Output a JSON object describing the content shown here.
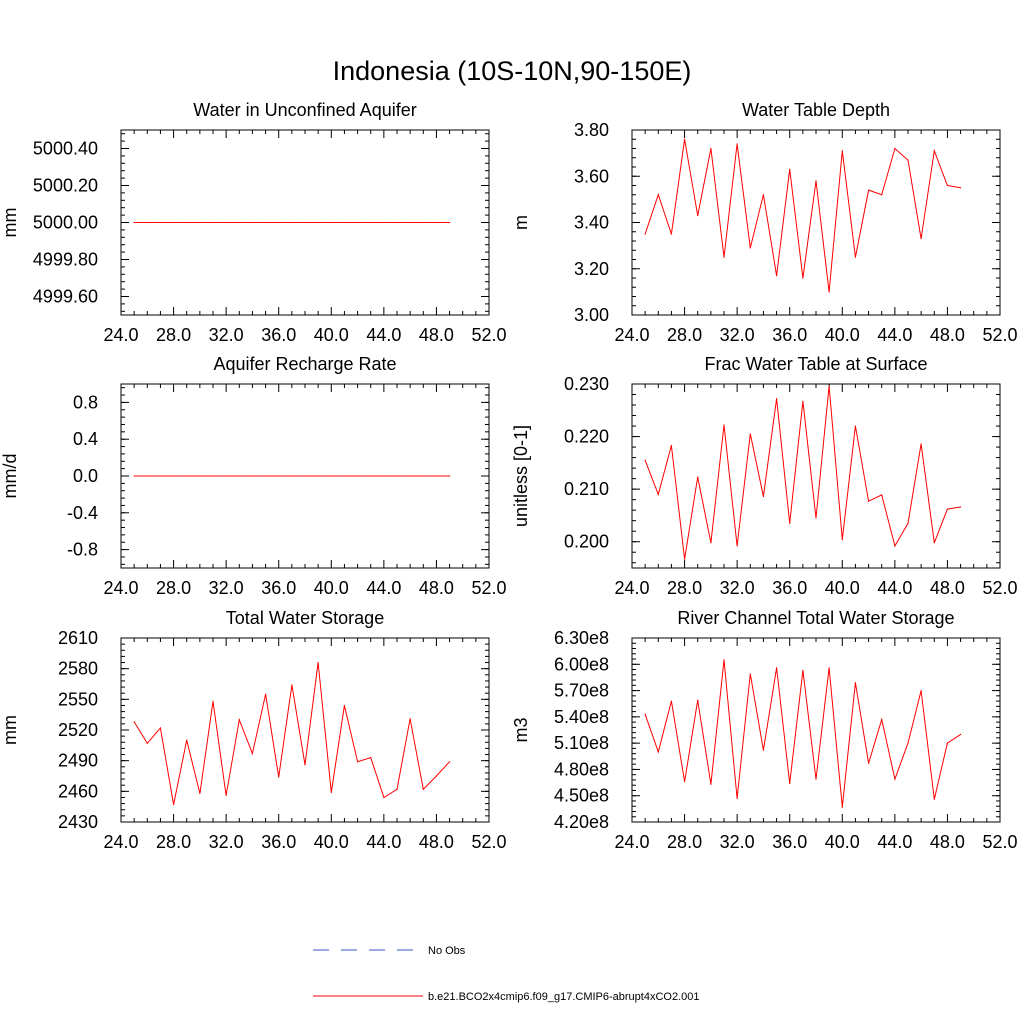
{
  "figure": {
    "title": "Indonesia (10S-10N,90-150E)",
    "legend": {
      "obs_label": "No Obs",
      "obs_color": "#3a55c8",
      "model_label": "b.e21.BCO2x4cmip6.f09_g17.CMIP6-abrupt4xCO2.001",
      "model_color": "#ff0000"
    }
  },
  "chart_data": [
    {
      "type": "line",
      "title": "Water in Unconfined Aquifer",
      "xlabel": "",
      "ylabel": "mm",
      "xlim": [
        24,
        52
      ],
      "ylim": [
        4999.5,
        5000.5
      ],
      "xticks": [
        "24.0",
        "28.0",
        "32.0",
        "36.0",
        "40.0",
        "44.0",
        "48.0",
        "52.0"
      ],
      "yticks": [
        {
          "value": 4999.6,
          "label": "4999.60"
        },
        {
          "value": 4999.8,
          "label": "4999.80"
        },
        {
          "value": 5000.0,
          "label": "5000.00"
        },
        {
          "value": 5000.2,
          "label": "5000.20"
        },
        {
          "value": 5000.4,
          "label": "5000.40"
        }
      ],
      "x": [
        25,
        26,
        27,
        28,
        29,
        30,
        31,
        32,
        33,
        34,
        35,
        36,
        37,
        38,
        39,
        40,
        41,
        42,
        43,
        44,
        45,
        46,
        47,
        48,
        49
      ],
      "series": [
        {
          "name": "b.e21.BCO2x4cmip6.f09_g17.CMIP6-abrupt4xCO2.001",
          "values": [
            5000,
            5000,
            5000,
            5000,
            5000,
            5000,
            5000,
            5000,
            5000,
            5000,
            5000,
            5000,
            5000,
            5000,
            5000,
            5000,
            5000,
            5000,
            5000,
            5000,
            5000,
            5000,
            5000,
            5000,
            5000
          ]
        }
      ]
    },
    {
      "type": "line",
      "title": "Water Table Depth",
      "xlabel": "",
      "ylabel": "m",
      "xlim": [
        24,
        52
      ],
      "ylim": [
        3.0,
        3.8
      ],
      "xticks": [
        "24.0",
        "28.0",
        "32.0",
        "36.0",
        "40.0",
        "44.0",
        "48.0",
        "52.0"
      ],
      "yticks": [
        {
          "value": 3.0,
          "label": "3.00"
        },
        {
          "value": 3.2,
          "label": "3.20"
        },
        {
          "value": 3.4,
          "label": "3.40"
        },
        {
          "value": 3.6,
          "label": "3.60"
        },
        {
          "value": 3.8,
          "label": "3.80"
        }
      ],
      "x": [
        25,
        26,
        27,
        28,
        29,
        30,
        31,
        32,
        33,
        34,
        35,
        36,
        37,
        38,
        39,
        40,
        41,
        42,
        43,
        44,
        45,
        46,
        47,
        48,
        49
      ],
      "series": [
        {
          "name": "b.e21.BCO2x4cmip6.f09_g17.CMIP6-abrupt4xCO2.001",
          "values": [
            3.35,
            3.52,
            3.35,
            3.76,
            3.43,
            3.72,
            3.25,
            3.74,
            3.29,
            3.52,
            3.17,
            3.63,
            3.16,
            3.58,
            3.1,
            3.71,
            3.25,
            3.54,
            3.52,
            3.72,
            3.67,
            3.33,
            3.71,
            3.56,
            3.55
          ]
        }
      ]
    },
    {
      "type": "line",
      "title": "Aquifer Recharge Rate",
      "xlabel": "",
      "ylabel": "mm/d",
      "xlim": [
        24,
        52
      ],
      "ylim": [
        -1.0,
        1.0
      ],
      "xticks": [
        "24.0",
        "28.0",
        "32.0",
        "36.0",
        "40.0",
        "44.0",
        "48.0",
        "52.0"
      ],
      "yticks": [
        {
          "value": -0.8,
          "label": "-0.8"
        },
        {
          "value": -0.4,
          "label": "-0.4"
        },
        {
          "value": 0.0,
          "label": "0.0"
        },
        {
          "value": 0.4,
          "label": "0.4"
        },
        {
          "value": 0.8,
          "label": "0.8"
        }
      ],
      "x": [
        25,
        26,
        27,
        28,
        29,
        30,
        31,
        32,
        33,
        34,
        35,
        36,
        37,
        38,
        39,
        40,
        41,
        42,
        43,
        44,
        45,
        46,
        47,
        48,
        49
      ],
      "series": [
        {
          "name": "b.e21.BCO2x4cmip6.f09_g17.CMIP6-abrupt4xCO2.001",
          "values": [
            0,
            0,
            0,
            0,
            0,
            0,
            0,
            0,
            0,
            0,
            0,
            0,
            0,
            0,
            0,
            0,
            0,
            0,
            0,
            0,
            0,
            0,
            0,
            0,
            0
          ]
        }
      ]
    },
    {
      "type": "line",
      "title": "Frac Water Table at Surface",
      "xlabel": "",
      "ylabel": "unitless [0-1]",
      "xlim": [
        24,
        52
      ],
      "ylim": [
        0.195,
        0.23
      ],
      "xticks": [
        "24.0",
        "28.0",
        "32.0",
        "36.0",
        "40.0",
        "44.0",
        "48.0",
        "52.0"
      ],
      "yticks": [
        {
          "value": 0.2,
          "label": "0.200"
        },
        {
          "value": 0.21,
          "label": "0.210"
        },
        {
          "value": 0.22,
          "label": "0.220"
        },
        {
          "value": 0.23,
          "label": "0.230"
        }
      ],
      "x": [
        25,
        26,
        27,
        28,
        29,
        30,
        31,
        32,
        33,
        34,
        35,
        36,
        37,
        38,
        39,
        40,
        41,
        42,
        43,
        44,
        45,
        46,
        47,
        48,
        49
      ],
      "series": [
        {
          "name": "b.e21.BCO2x4cmip6.f09_g17.CMIP6-abrupt4xCO2.001",
          "values": [
            0.2155,
            0.209,
            0.2183,
            0.1967,
            0.2123,
            0.1998,
            0.2222,
            0.1992,
            0.2205,
            0.2086,
            0.2272,
            0.2035,
            0.2267,
            0.2045,
            0.2296,
            0.2004,
            0.222,
            0.2077,
            0.2089,
            0.1992,
            0.2035,
            0.2186,
            0.1998,
            0.2062,
            0.2066
          ]
        }
      ]
    },
    {
      "type": "line",
      "title": "Total Water Storage",
      "xlabel": "",
      "ylabel": "mm",
      "xlim": [
        24,
        52
      ],
      "ylim": [
        2430,
        2610
      ],
      "xticks": [
        "24.0",
        "28.0",
        "32.0",
        "36.0",
        "40.0",
        "44.0",
        "48.0",
        "52.0"
      ],
      "yticks": [
        {
          "value": 2430,
          "label": "2430"
        },
        {
          "value": 2460,
          "label": "2460"
        },
        {
          "value": 2490,
          "label": "2490"
        },
        {
          "value": 2520,
          "label": "2520"
        },
        {
          "value": 2550,
          "label": "2550"
        },
        {
          "value": 2580,
          "label": "2580"
        },
        {
          "value": 2610,
          "label": "2610"
        }
      ],
      "x": [
        25,
        26,
        27,
        28,
        29,
        30,
        31,
        32,
        33,
        34,
        35,
        36,
        37,
        38,
        39,
        40,
        41,
        42,
        43,
        44,
        45,
        46,
        47,
        48,
        49
      ],
      "series": [
        {
          "name": "b.e21.BCO2x4cmip6.f09_g17.CMIP6-abrupt4xCO2.001",
          "values": [
            2528,
            2507,
            2522,
            2447,
            2510,
            2458,
            2548,
            2456,
            2530,
            2497,
            2555,
            2474,
            2564,
            2486,
            2586,
            2459,
            2544,
            2489,
            2493,
            2454,
            2462,
            2531,
            2462,
            2475,
            2489
          ]
        }
      ]
    },
    {
      "type": "line",
      "title": "River Channel Total Water Storage",
      "xlabel": "",
      "ylabel": "m3",
      "xlim": [
        24,
        52
      ],
      "ylim": [
        420000000.0,
        630000000.0
      ],
      "xticks": [
        "24.0",
        "28.0",
        "32.0",
        "36.0",
        "40.0",
        "44.0",
        "48.0",
        "52.0"
      ],
      "yticks": [
        {
          "value": 420000000.0,
          "label": "4.20e8"
        },
        {
          "value": 450000000.0,
          "label": "4.50e8"
        },
        {
          "value": 480000000.0,
          "label": "4.80e8"
        },
        {
          "value": 510000000.0,
          "label": "5.10e8"
        },
        {
          "value": 540000000.0,
          "label": "5.40e8"
        },
        {
          "value": 570000000.0,
          "label": "5.70e8"
        },
        {
          "value": 600000000.0,
          "label": "6.00e8"
        },
        {
          "value": 630000000.0,
          "label": "6.30e8"
        }
      ],
      "x": [
        25,
        26,
        27,
        28,
        29,
        30,
        31,
        32,
        33,
        34,
        35,
        36,
        37,
        38,
        39,
        40,
        41,
        42,
        43,
        44,
        45,
        46,
        47,
        48,
        49
      ],
      "series": [
        {
          "name": "b.e21.BCO2x4cmip6.f09_g17.CMIP6-abrupt4xCO2.001",
          "values": [
            543000000.0,
            500000000.0,
            558000000.0,
            466000000.0,
            559000000.0,
            463000000.0,
            605000000.0,
            447000000.0,
            589000000.0,
            502000000.0,
            596000000.0,
            464000000.0,
            593000000.0,
            469000000.0,
            596000000.0,
            437000000.0,
            579000000.0,
            487000000.0,
            537000000.0,
            469000000.0,
            510000000.0,
            570000000.0,
            446000000.0,
            510000000.0,
            520000000.0
          ]
        }
      ]
    }
  ]
}
